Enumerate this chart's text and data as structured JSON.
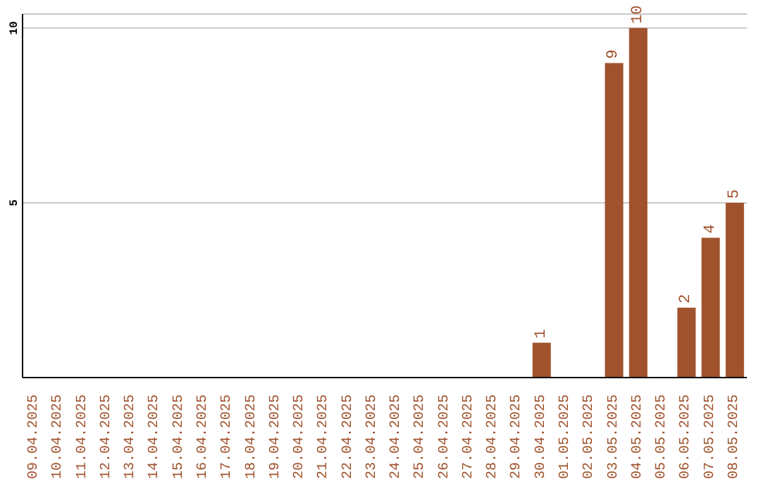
{
  "chart_data": {
    "type": "bar",
    "categories": [
      "09.04.2025",
      "10.04.2025",
      "11.04.2025",
      "12.04.2025",
      "13.04.2025",
      "14.04.2025",
      "15.04.2025",
      "16.04.2025",
      "17.04.2025",
      "18.04.2025",
      "19.04.2025",
      "20.04.2025",
      "21.04.2025",
      "22.04.2025",
      "23.04.2025",
      "24.04.2025",
      "25.04.2025",
      "26.04.2025",
      "27.04.2025",
      "28.04.2025",
      "29.04.2025",
      "30.04.2025",
      "01.05.2025",
      "02.05.2025",
      "03.05.2025",
      "04.05.2025",
      "05.05.2025",
      "06.05.2025",
      "07.05.2025",
      "08.05.2025"
    ],
    "values": [
      0,
      0,
      0,
      0,
      0,
      0,
      0,
      0,
      0,
      0,
      0,
      0,
      0,
      0,
      0,
      0,
      0,
      0,
      0,
      0,
      0,
      1,
      0,
      0,
      9,
      10,
      0,
      2,
      4,
      5
    ],
    "value_labels": [
      null,
      null,
      null,
      null,
      null,
      null,
      null,
      null,
      null,
      null,
      null,
      null,
      null,
      null,
      null,
      null,
      null,
      null,
      null,
      null,
      null,
      "1",
      null,
      null,
      "9",
      "10",
      null,
      "2",
      "4",
      "5"
    ],
    "color": "#a0522d",
    "ylim": [
      0,
      10.4
    ],
    "yticks": [
      5,
      10
    ],
    "grid": "y"
  }
}
